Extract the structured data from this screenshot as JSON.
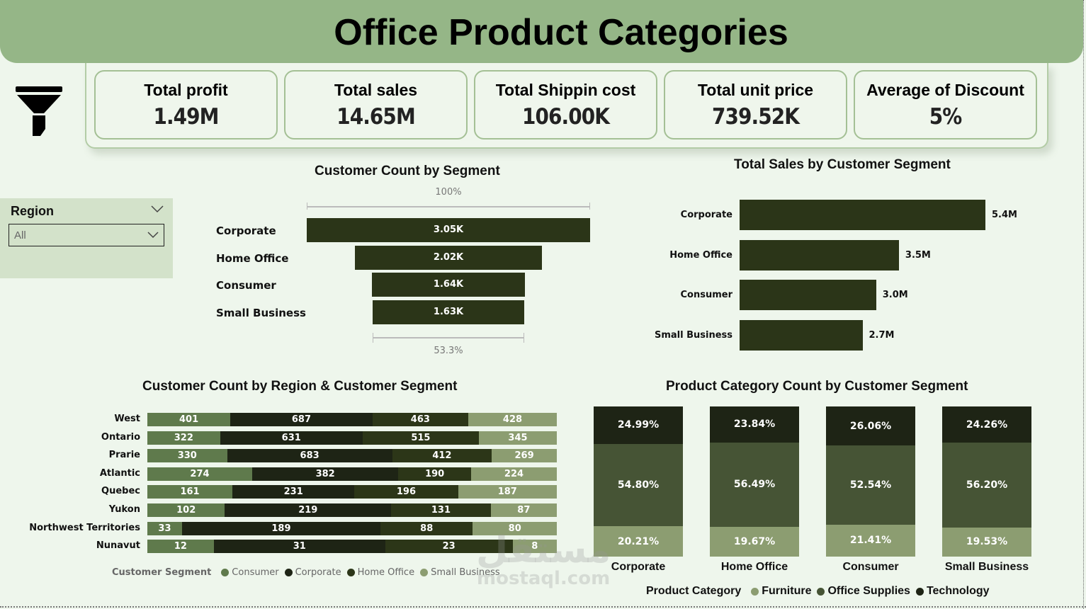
{
  "header": {
    "title": "Office Product Categories"
  },
  "kpis": [
    {
      "label": "Total profit",
      "value": "1.49M"
    },
    {
      "label": "Total sales",
      "value": "14.65M"
    },
    {
      "label": "Total Shippin cost",
      "value": "106.00K"
    },
    {
      "label": "Total unit price",
      "value": "739.52K"
    },
    {
      "label": "Average of Discount",
      "value": "5%"
    }
  ],
  "icons": {
    "filter": "filter-funnel-icon",
    "collapse": "chevron-down-icon",
    "dropdown": "chevron-down-icon"
  },
  "slicer": {
    "label": "Region",
    "selected": "All"
  },
  "colors": {
    "header": "#95b687",
    "bar_dark": "#2b3518",
    "consumer": "#5f7a4c",
    "corporate": "#1e2415",
    "home_office": "#2c3618",
    "small_business": "#8c9d71",
    "technology": "#1e2415",
    "office_supplies": "#465435",
    "furniture": "#8c9d71"
  },
  "watermark": {
    "arabic": "مستقل",
    "latin": "mostaql.com"
  },
  "chart_data": [
    {
      "type": "bar",
      "subtype": "funnel",
      "title": "Customer Count by Segment",
      "categories": [
        "Corporate",
        "Home Office",
        "Consumer",
        "Small Business"
      ],
      "values": [
        3050,
        2020,
        1640,
        1630
      ],
      "value_labels": [
        "3.05K",
        "2.02K",
        "1.64K",
        "1.63K"
      ],
      "top_percent_label": "100%",
      "bottom_percent_label": "53.3%"
    },
    {
      "type": "bar",
      "orientation": "horizontal",
      "title": "Total Sales by Customer Segment",
      "categories": [
        "Corporate",
        "Home Office",
        "Consumer",
        "Small Business"
      ],
      "values": [
        5.4,
        3.5,
        3.0,
        2.7
      ],
      "value_labels": [
        "5.4M",
        "3.5M",
        "3.0M",
        "2.7M"
      ],
      "unit": "M",
      "xlim": [
        0,
        5.4
      ]
    },
    {
      "type": "bar",
      "subtype": "100% stacked horizontal",
      "title": "Customer Count by Region & Customer Segment",
      "categories": [
        "West",
        "Ontario",
        "Prarie",
        "Atlantic",
        "Quebec",
        "Yukon",
        "Northwest Territories",
        "Nunavut"
      ],
      "legend_title": "Customer Segment",
      "legend_position": "bottom",
      "series": [
        {
          "name": "Consumer",
          "values": [
            401,
            322,
            330,
            274,
            161,
            102,
            33,
            12
          ]
        },
        {
          "name": "Corporate",
          "values": [
            687,
            631,
            683,
            382,
            231,
            219,
            189,
            31
          ]
        },
        {
          "name": "Home Office",
          "values": [
            463,
            515,
            412,
            190,
            196,
            131,
            88,
            23
          ]
        },
        {
          "name": "Small Business",
          "values": [
            428,
            345,
            269,
            224,
            187,
            87,
            80,
            8
          ]
        }
      ]
    },
    {
      "type": "bar",
      "subtype": "100% stacked column",
      "title": "Product Category Count by Customer Segment",
      "categories": [
        "Corporate",
        "Home Office",
        "Consumer",
        "Small Business"
      ],
      "legend_title": "Product Category",
      "legend_position": "bottom",
      "series": [
        {
          "name": "Furniture",
          "values": [
            20.21,
            19.67,
            21.41,
            19.53
          ]
        },
        {
          "name": "Office Supplies",
          "values": [
            54.8,
            56.49,
            52.54,
            56.2
          ]
        },
        {
          "name": "Technology",
          "values": [
            24.99,
            23.84,
            26.06,
            24.26
          ]
        }
      ],
      "unit": "%",
      "ylim": [
        0,
        100
      ]
    }
  ]
}
